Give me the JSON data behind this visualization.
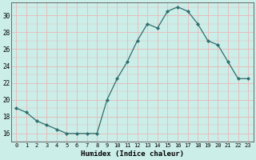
{
  "x": [
    0,
    1,
    2,
    3,
    4,
    5,
    6,
    7,
    8,
    9,
    10,
    11,
    12,
    13,
    14,
    15,
    16,
    17,
    18,
    19,
    20,
    21,
    22,
    23
  ],
  "y": [
    19,
    18.5,
    17.5,
    17,
    16.5,
    16,
    16,
    16,
    16,
    20,
    22.5,
    24.5,
    27,
    29,
    28.5,
    30.5,
    31,
    30.5,
    29,
    27,
    26.5,
    24.5,
    22.5,
    22.5
  ],
  "xlabel": "Humidex (Indice chaleur)",
  "xlim": [
    -0.5,
    23.5
  ],
  "ylim": [
    15,
    31.5
  ],
  "yticks": [
    16,
    18,
    20,
    22,
    24,
    26,
    28,
    30
  ],
  "xticks": [
    0,
    1,
    2,
    3,
    4,
    5,
    6,
    7,
    8,
    9,
    10,
    11,
    12,
    13,
    14,
    15,
    16,
    17,
    18,
    19,
    20,
    21,
    22,
    23
  ],
  "line_color": "#2d6e6e",
  "marker": "D",
  "marker_size": 2.0,
  "bg_color": "#cceee8",
  "grid_color_major": "#e8b8b8",
  "grid_color_minor": "#e8b8b8",
  "font_family": "monospace"
}
